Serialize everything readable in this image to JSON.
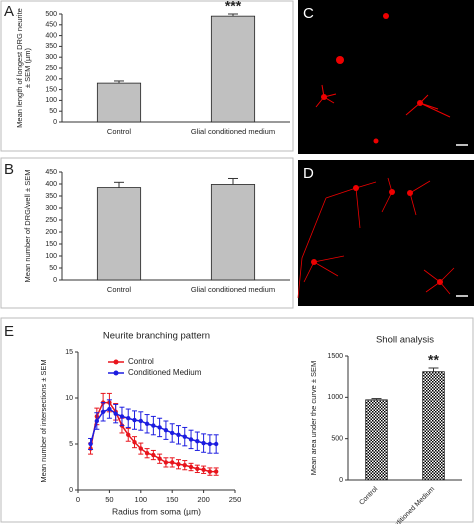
{
  "chart_data": [
    {
      "type": "bar",
      "panel": "A",
      "ylabel": [
        "Mean length of longest DRG neurite",
        "± SEM (µm)"
      ],
      "categories": [
        "Control",
        "Glial conditioned medium"
      ],
      "values": [
        180,
        490
      ],
      "errors": [
        10,
        10
      ],
      "color": "#c0c0c0",
      "annotation": "***",
      "ylim": [
        0,
        500
      ],
      "yticks": [
        0,
        50,
        100,
        150,
        200,
        250,
        300,
        350,
        400,
        450,
        500
      ]
    },
    {
      "type": "bar",
      "panel": "B",
      "ylabel": [
        "Mean number of DRG/well ± SEM"
      ],
      "categories": [
        "Control",
        "Glial conditioned medium"
      ],
      "values": [
        385,
        398
      ],
      "errors": [
        22,
        25
      ],
      "color": "#c0c0c0",
      "ylim": [
        0,
        450
      ],
      "yticks": [
        0,
        50,
        100,
        150,
        200,
        250,
        300,
        350,
        400,
        450
      ]
    },
    {
      "type": "line",
      "panel": "E",
      "title": "Neurite branching pattern",
      "ylabel": [
        "Mean number of intersections ± SEM"
      ],
      "xlabel": "Radius from soma (µm)",
      "x": [
        20,
        30,
        40,
        50,
        60,
        70,
        80,
        90,
        100,
        110,
        120,
        130,
        140,
        150,
        160,
        170,
        180,
        190,
        200,
        210,
        220
      ],
      "series": [
        {
          "name": "Control",
          "color": "#e8141c",
          "values": [
            4.5,
            8,
            9.5,
            9.5,
            8.5,
            7,
            6,
            5.2,
            4.5,
            4,
            3.8,
            3.4,
            3,
            3,
            2.8,
            2.7,
            2.5,
            2.3,
            2.2,
            2.0,
            2.0
          ],
          "errors": [
            0.6,
            0.9,
            1,
            1,
            0.9,
            0.8,
            0.7,
            0.6,
            0.6,
            0.5,
            0.5,
            0.5,
            0.5,
            0.5,
            0.5,
            0.5,
            0.4,
            0.4,
            0.4,
            0.4,
            0.4
          ]
        },
        {
          "name": "Conditioned Medium",
          "color": "#1c1ce0",
          "values": [
            5,
            7.5,
            8.5,
            8.8,
            8.3,
            8,
            7.8,
            7.6,
            7.5,
            7.2,
            7.0,
            6.8,
            6.5,
            6.2,
            6,
            5.8,
            5.5,
            5.3,
            5.1,
            5.0,
            5.0
          ],
          "errors": [
            0.6,
            0.9,
            1,
            1,
            1,
            1,
            1,
            1,
            1,
            1,
            1,
            1,
            1,
            1,
            1,
            1,
            1,
            1,
            1,
            1,
            1
          ]
        }
      ],
      "xlim": [
        0,
        250
      ],
      "xticks": [
        0,
        50,
        100,
        150,
        200,
        250
      ],
      "ylim": [
        0,
        15
      ],
      "yticks": [
        0,
        5,
        10,
        15
      ]
    },
    {
      "type": "bar",
      "title": "Sholl analysis",
      "ylabel": [
        "Mean area under the curve ± SEM"
      ],
      "categories": [
        "Control",
        "Conditioned Medium"
      ],
      "values": [
        970,
        1310
      ],
      "errors": [
        15,
        45
      ],
      "color": "#000000",
      "pattern": "checker",
      "annotation": "**",
      "ylim": [
        0,
        1500
      ],
      "yticks": [
        0,
        500,
        1000,
        1500
      ]
    }
  ],
  "images": [
    {
      "panel": "C"
    },
    {
      "panel": "D"
    }
  ]
}
